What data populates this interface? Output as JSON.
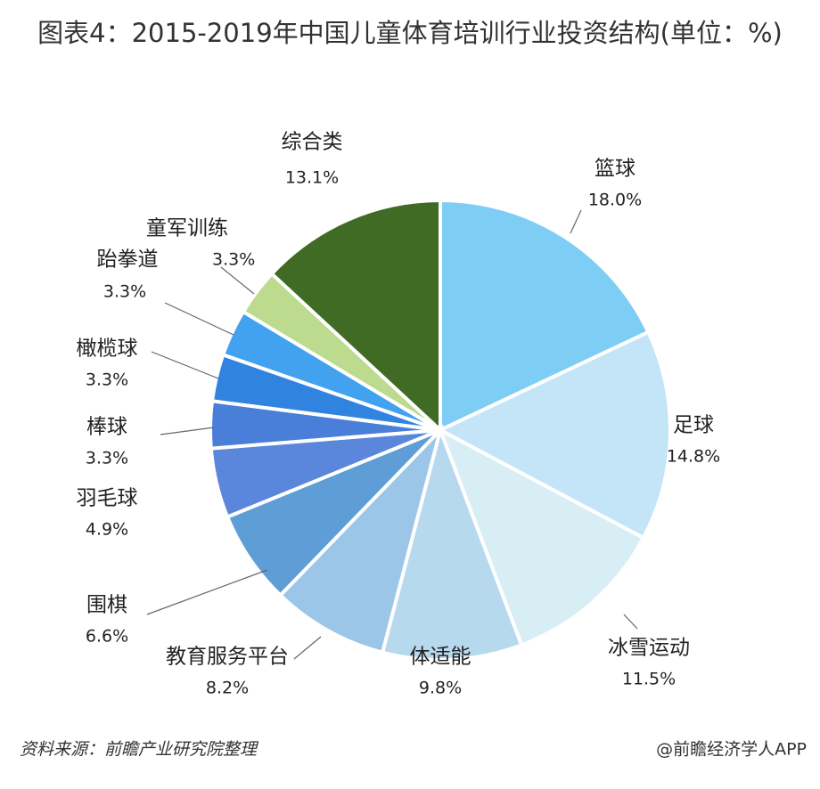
{
  "chart_data": {
    "type": "pie",
    "title": "图表4：2015-2019年中国儿童体育培训行业投资结构(单位：%)",
    "categories": [
      "篮球",
      "足球",
      "冰雪运动",
      "体适能",
      "教育服务平台",
      "围棋",
      "羽毛球",
      "棒球",
      "橄榄球",
      "跆拳道",
      "童军训练",
      "综合类"
    ],
    "values": [
      18.0,
      14.8,
      11.5,
      9.8,
      8.2,
      6.6,
      4.9,
      3.3,
      3.3,
      3.3,
      3.3,
      13.1
    ],
    "value_labels": [
      "18.0%",
      "14.8%",
      "11.5%",
      "9.8%",
      "8.2%",
      "6.6%",
      "4.9%",
      "3.3%",
      "3.3%",
      "3.3%",
      "3.3%",
      "13.1%"
    ],
    "colors": [
      "#7ecdf5",
      "#c4e5f8",
      "#d8eef5",
      "#b7d9ee",
      "#9cc6e8",
      "#5e9dd6",
      "#5a86db",
      "#4a7fd9",
      "#3183e0",
      "#43a2ef",
      "#bcdb8f",
      "#3f6b25"
    ],
    "source": "资料来源：前瞻产业研究院整理",
    "credit": "@前瞻经济学人APP"
  }
}
